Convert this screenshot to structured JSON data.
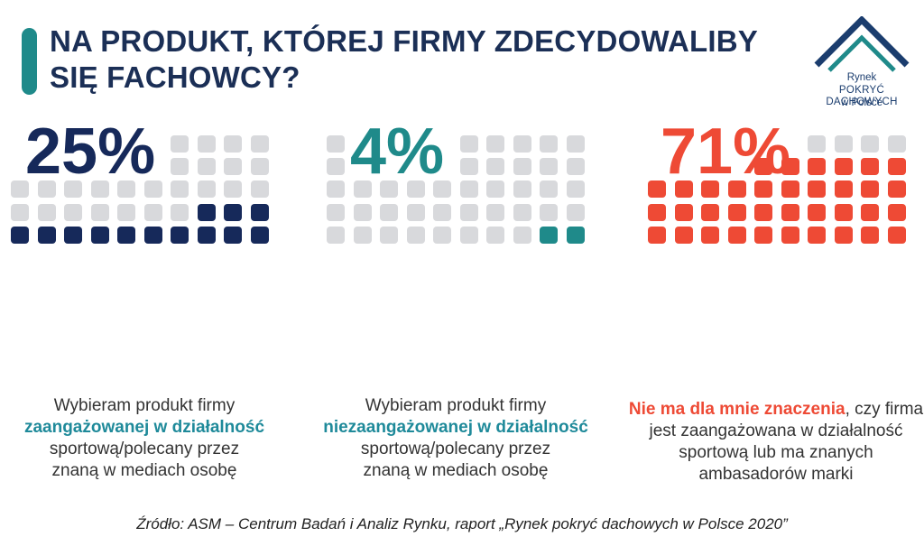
{
  "title": "NA PRODUKT, KTÓREJ FIRMY ZDECYDOWALIBY SIĘ FACHOWCY?",
  "logo": {
    "line1": "Rynek",
    "line2": "POKRYĆ DACHOWYCH",
    "line3": "w Polsce",
    "color": "#1b3d6e",
    "roof_colors": [
      "#1b3d6e",
      "#1f8a8a"
    ]
  },
  "chart_data": {
    "type": "waffle",
    "grid": {
      "total": 50,
      "columns": 10,
      "rows": 5,
      "empty_color": "#d8d9dc"
    },
    "panels": [
      {
        "value": 25,
        "label": "25%",
        "color": "#16295a",
        "caption": {
          "before": "Wybieram produkt firmy",
          "highlight": "zaangażowanej w działalność",
          "after1": "sportową/polecany przez",
          "after2": "znaną w mediach osobę",
          "highlight_color": "#1f8a9a"
        }
      },
      {
        "value": 4,
        "label": "4%",
        "color": "#1f8a8a",
        "caption": {
          "before": "Wybieram produkt firmy",
          "highlight": "niezaangażowanej w działalność",
          "after1": "sportową/polecany przez",
          "after2": "znaną w mediach osobę",
          "highlight_color": "#1f8a9a"
        }
      },
      {
        "value": 71,
        "label": "71%",
        "color": "#ee4a35",
        "caption": {
          "highlight": "Nie ma dla mnie znaczenia",
          "rest1": ", czy firma",
          "rest2": "jest zaangażowana w działalność",
          "rest3": "sportową lub ma znanych",
          "rest4": "ambasadorów marki",
          "highlight_color": "#ee4a35"
        }
      }
    ]
  },
  "source": "Źródło: ASM – Centrum Badań i Analiz Rynku, raport „Rynek pokryć dachowych w Polsce 2020”"
}
